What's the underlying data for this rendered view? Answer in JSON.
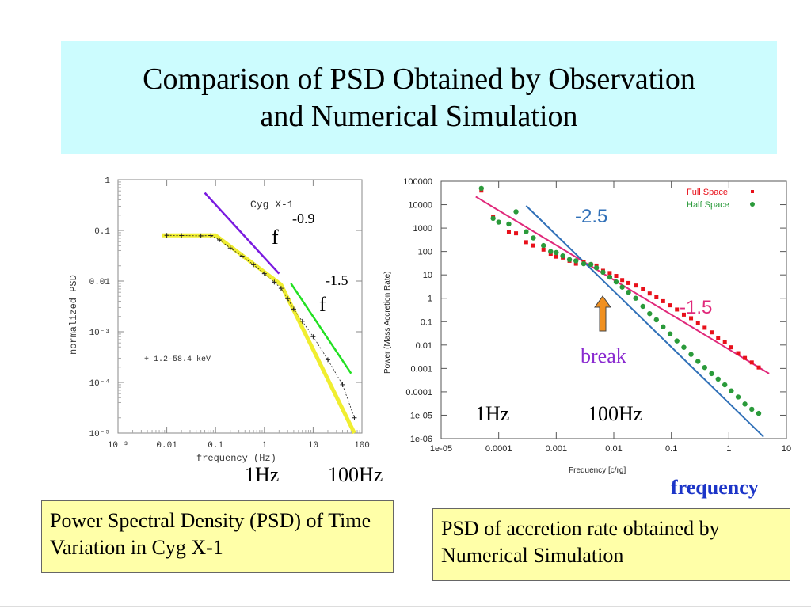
{
  "slide": {
    "title": "Comparison of  PSD Obtained by Observation\nand Numerical Simulation",
    "label_1hz": "1Hz",
    "label_100hz": "100Hz",
    "frequency_label": "frequency",
    "caption_left": "Power Spectral Density (PSD) of Time Variation in Cyg X-1",
    "caption_right": "PSD of accretion rate obtained by Numerical Simulation"
  },
  "colors": {
    "title_bg": "#ccfcfe",
    "caption_bg": "#ffffa8",
    "slope_09_line": "#7a1ae0",
    "slope_15_line": "#22e022",
    "obs_psd_curve": "#f0ee30",
    "full_space": "#e8101a",
    "half_space": "#2a9a3a",
    "fit_pink": "#e0287a",
    "fit_blue": "#3070b8",
    "break_arrow": "#f09020",
    "break_text": "#8a2ad0",
    "frequency_text": "#1c35c8"
  },
  "chart_data": [
    {
      "type": "line",
      "title": "Cyg X-1",
      "xlabel": "frequency (Hz)",
      "ylabel": "normalized PSD",
      "xscale": "log",
      "yscale": "log",
      "xlim": [
        0.001,
        100
      ],
      "ylim": [
        1e-05,
        1
      ],
      "x_ticks": [
        "10⁻³",
        "0.01",
        "0.1",
        "1",
        "10",
        "100"
      ],
      "y_ticks": [
        "1",
        "0.1",
        "0.01",
        "10⁻³",
        "10⁻⁴",
        "10⁻⁵"
      ],
      "legend": "+ 1.2–58.4 keV",
      "annotations": [
        {
          "base": "f",
          "exponent": "-0.9"
        },
        {
          "base": "f",
          "exponent": "-1.5"
        }
      ],
      "series": [
        {
          "name": "1.2–58.4 keV",
          "x": [
            0.01,
            0.02,
            0.05,
            0.08,
            0.12,
            0.2,
            0.35,
            0.6,
            1,
            1.6,
            2.2,
            3,
            4,
            6,
            10,
            20,
            40,
            70
          ],
          "y": [
            0.08,
            0.079,
            0.078,
            0.079,
            0.065,
            0.045,
            0.031,
            0.021,
            0.014,
            0.0095,
            0.0072,
            0.0045,
            0.0028,
            0.0016,
            0.0008,
            0.00028,
            9e-05,
            2e-05
          ]
        },
        {
          "x": [
            0.008,
            0.1,
            2.2,
            70
          ],
          "y": [
            0.08,
            0.08,
            0.0085,
            1e-05
          ]
        },
        {
          "x": [
            0.06,
            2.0
          ],
          "y": [
            0.55,
            0.014
          ]
        },
        {
          "x": [
            3.5,
            60
          ],
          "y": [
            0.009,
            0.00015
          ]
        }
      ]
    },
    {
      "type": "scatter",
      "xlabel": "Frequency [c/rg]",
      "ylabel": "Power (Mass Accretion Rate)",
      "xscale": "log",
      "yscale": "log",
      "xlim": [
        1e-05,
        10
      ],
      "ylim": [
        1e-06,
        100000
      ],
      "x_ticks": [
        "1e-05",
        "0.0001",
        "0.001",
        "0.01",
        "0.1",
        "1",
        "10"
      ],
      "y_ticks": [
        "100000",
        "10000",
        "1000",
        "100",
        "10",
        "1",
        "0.1",
        "0.01",
        "0.001",
        "0.0001",
        "1e-05",
        "1e-06"
      ],
      "legend_placement": "top-right",
      "annotations": [
        {
          "text": "-2.5"
        },
        {
          "text": "-1.5"
        },
        {
          "text": "break"
        },
        {
          "text": "1Hz"
        },
        {
          "text": "100Hz"
        }
      ],
      "series": [
        {
          "name": "Full Space",
          "x": [
            5e-05,
            8e-05,
            0.00015,
            0.0002,
            0.0003,
            0.0004,
            0.0006,
            0.0008,
            0.001,
            0.0013,
            0.0017,
            0.0022,
            0.003,
            0.004,
            0.005,
            0.0065,
            0.0085,
            0.011,
            0.014,
            0.018,
            0.024,
            0.032,
            0.042,
            0.055,
            0.072,
            0.095,
            0.125,
            0.165,
            0.22,
            0.29,
            0.38,
            0.5,
            0.65,
            0.85,
            1.1,
            1.45,
            1.9,
            2.5,
            3.3
          ],
          "y": [
            40000,
            3000,
            700,
            600,
            250,
            180,
            120,
            80,
            60,
            55,
            40,
            30,
            35,
            28,
            25,
            15,
            12,
            9,
            6,
            4.5,
            3.5,
            2.5,
            1.6,
            1.1,
            0.75,
            0.5,
            0.33,
            0.2,
            0.14,
            0.09,
            0.055,
            0.035,
            0.02,
            0.013,
            0.008,
            0.0045,
            0.0028,
            0.0018,
            0.0011
          ]
        },
        {
          "name": "Half Space",
          "x": [
            5e-05,
            8e-05,
            0.0001,
            0.00015,
            0.0002,
            0.0003,
            0.0004,
            0.0006,
            0.0008,
            0.001,
            0.0013,
            0.0017,
            0.0022,
            0.003,
            0.004,
            0.005,
            0.0065,
            0.0085,
            0.011,
            0.014,
            0.018,
            0.024,
            0.032,
            0.042,
            0.055,
            0.072,
            0.095,
            0.125,
            0.165,
            0.22,
            0.29,
            0.38,
            0.5,
            0.65,
            0.85,
            1.1,
            1.45,
            1.9,
            2.5,
            3.3
          ],
          "y": [
            50000,
            2600,
            1800,
            1500,
            5000,
            700,
            380,
            180,
            100,
            90,
            65,
            45,
            40,
            30,
            28,
            20,
            13,
            8,
            5,
            3,
            1.8,
            1,
            0.45,
            0.22,
            0.12,
            0.06,
            0.03,
            0.015,
            0.008,
            0.004,
            0.002,
            0.0011,
            0.0006,
            0.00035,
            0.0002,
            0.00011,
            6e-05,
            3e-05,
            1.8e-05,
            1.2e-05
          ]
        },
        {
          "x": [
            4e-05,
            5
          ],
          "y": [
            22000,
            0.0006
          ]
        },
        {
          "x": [
            0.0003,
            4
          ],
          "y": [
            9000,
            1.2e-06
          ]
        }
      ]
    }
  ]
}
